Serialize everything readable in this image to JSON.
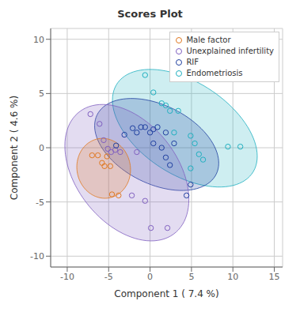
{
  "chart_data": {
    "type": "scatter",
    "title": "Scores Plot",
    "xlabel": "Component 1 ( 7.4 %)",
    "ylabel": "Component 2 ( 4.6 %)",
    "xlim": [
      -12,
      16
    ],
    "ylim": [
      -11,
      11
    ],
    "xticks": [
      -10,
      -5,
      0,
      5,
      10,
      15
    ],
    "yticks": [
      -10,
      -5,
      0,
      5,
      10
    ],
    "grid": true,
    "legend": "upper right",
    "series": [
      {
        "name": "Male factor",
        "color": "#E07820",
        "marker": "circle",
        "x": [
          -7.0,
          -6.3,
          -5.8,
          -5.2,
          -5.5,
          -4.8,
          -4.6,
          -3.8
        ],
        "y": [
          -0.7,
          -0.7,
          -1.4,
          -0.8,
          -1.7,
          -1.7,
          -4.3,
          -4.4
        ],
        "ellipse": {
          "cx": -5.6,
          "cy": -1.9,
          "width": 6.5,
          "height": 5.5,
          "angle": -8
        }
      },
      {
        "name": "Unexplained infertility",
        "color": "#8060C0",
        "marker": "circle",
        "x": [
          -7.2,
          -6.1,
          -5.6,
          -5.1,
          -4.7,
          -4.2,
          -3.6,
          -2.2,
          -1.6,
          -0.6,
          0.1,
          2.1
        ],
        "y": [
          3.1,
          2.2,
          0.7,
          -0.1,
          -0.4,
          -0.2,
          -0.4,
          -4.4,
          -0.4,
          -4.9,
          -7.4,
          -7.4
        ],
        "ellipse": {
          "cx": -2.8,
          "cy": -2.3,
          "width": 16.5,
          "height": 10.5,
          "angle": -33
        }
      },
      {
        "name": "RIF",
        "color": "#2040A0",
        "marker": "circle",
        "x": [
          -4.1,
          -3.1,
          -2.1,
          -1.6,
          -1.1,
          -0.6,
          0.0,
          0.4,
          0.4,
          0.9,
          1.4,
          1.9,
          1.9,
          2.4,
          2.9,
          4.4,
          4.9
        ],
        "y": [
          0.2,
          1.2,
          1.8,
          1.4,
          1.9,
          1.9,
          1.4,
          1.7,
          0.4,
          1.9,
          0.0,
          1.4,
          -0.9,
          -1.6,
          0.4,
          -4.4,
          -3.4
        ],
        "ellipse": {
          "cx": 0.8,
          "cy": 0.3,
          "width": 15.5,
          "height": 7.5,
          "angle": -17
        }
      },
      {
        "name": "Endometriosis",
        "color": "#20B0C0",
        "marker": "circle",
        "x": [
          -0.6,
          0.4,
          1.4,
          1.9,
          2.4,
          2.9,
          3.4,
          4.9,
          5.4,
          5.9,
          6.4,
          4.9,
          9.4,
          10.9
        ],
        "y": [
          6.7,
          5.1,
          4.1,
          3.9,
          3.4,
          1.4,
          3.4,
          1.1,
          0.4,
          -0.6,
          -1.1,
          -1.9,
          0.1,
          0.1
        ],
        "ellipse": {
          "cx": 4.2,
          "cy": 1.8,
          "width": 18.5,
          "height": 9.0,
          "angle": -22
        }
      }
    ]
  }
}
